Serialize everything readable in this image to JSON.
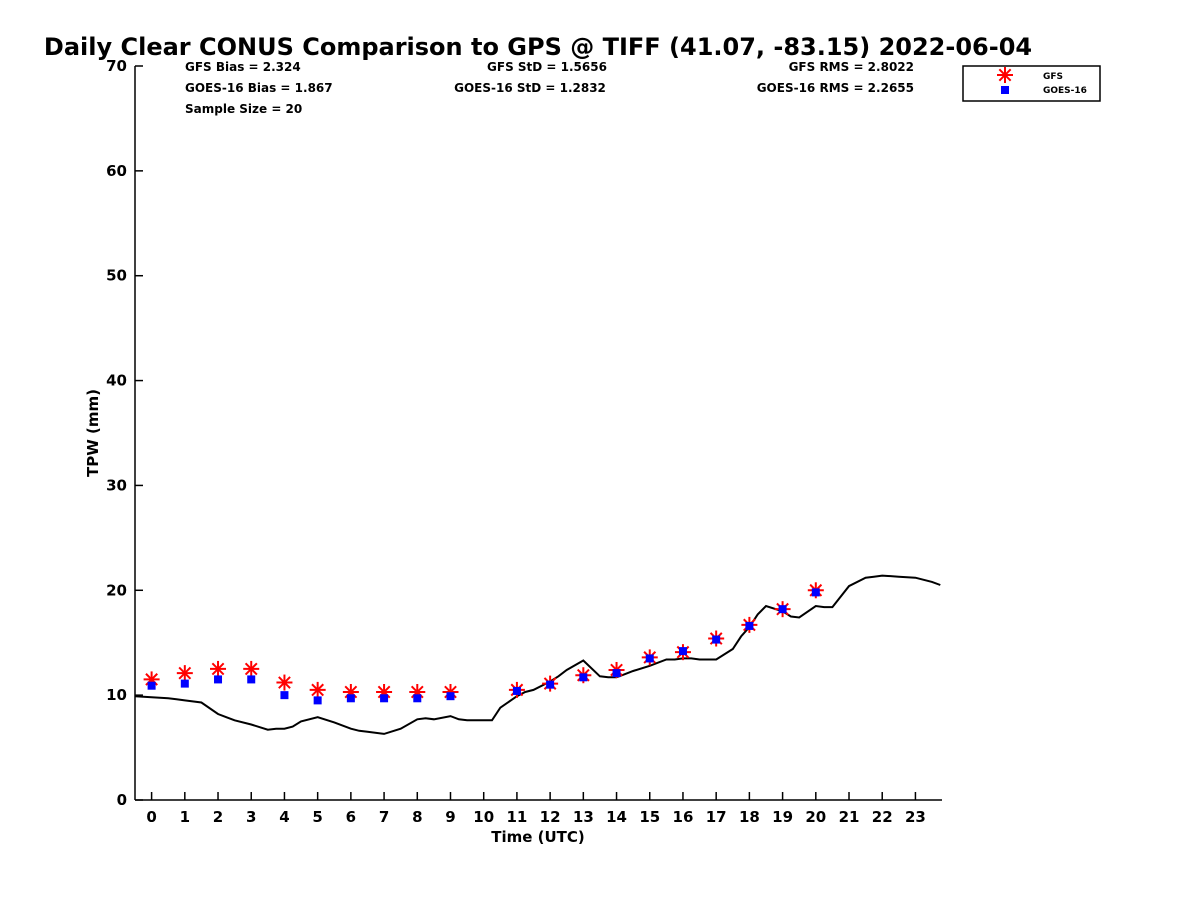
{
  "chart_data": {
    "type": "scatter",
    "title": "Daily Clear CONUS Comparison to GPS @ TIFF (41.07, -83.15) 2022-06-04",
    "xlabel": "Time (UTC)",
    "ylabel": "TPW (mm)",
    "xlim": [
      -0.5,
      23.8
    ],
    "ylim": [
      0,
      70
    ],
    "x_ticks": [
      0,
      1,
      2,
      3,
      4,
      5,
      6,
      7,
      8,
      9,
      10,
      11,
      12,
      13,
      14,
      15,
      16,
      17,
      18,
      19,
      20,
      21,
      22,
      23
    ],
    "y_ticks": [
      0,
      10,
      20,
      30,
      40,
      50,
      60,
      70
    ],
    "grid": false,
    "legend_position": "top-right, outside plot area",
    "stats": {
      "gfs_bias": "GFS Bias = 2.324",
      "goes_bias": "GOES-16 Bias = 1.867",
      "sample_size": "Sample Size = 20",
      "gfs_std": "GFS StD = 1.5656",
      "goes_std": "GOES-16 StD = 1.2832",
      "gfs_rms": "GFS RMS = 2.8022",
      "goes_rms": "GOES-16 RMS = 2.2655"
    },
    "series": [
      {
        "name": "GFS",
        "marker": "asterisk",
        "color": "#ff0000",
        "x": [
          0,
          1,
          2,
          3,
          4,
          5,
          6,
          7,
          8,
          9,
          11,
          12,
          13,
          14,
          15,
          16,
          17,
          18,
          19,
          20
        ],
        "y": [
          11.5,
          12.1,
          12.5,
          12.5,
          11.2,
          10.5,
          10.3,
          10.3,
          10.3,
          10.3,
          10.5,
          11.1,
          11.9,
          12.4,
          13.6,
          14.1,
          15.4,
          16.7,
          18.2,
          20.0
        ]
      },
      {
        "name": "GOES-16",
        "marker": "square",
        "color": "#0000ff",
        "x": [
          0,
          1,
          2,
          3,
          4,
          5,
          6,
          7,
          8,
          9,
          11,
          12,
          13,
          14,
          15,
          16,
          17,
          18,
          19,
          20
        ],
        "y": [
          10.9,
          11.1,
          11.5,
          11.5,
          10.0,
          9.5,
          9.7,
          9.7,
          9.7,
          9.9,
          10.4,
          11.0,
          11.7,
          12.1,
          13.5,
          14.2,
          15.3,
          16.6,
          18.2,
          19.8
        ]
      },
      {
        "name": "GPS",
        "line": true,
        "color": "#000000",
        "x": [
          -0.5,
          0,
          0.5,
          0.75,
          1,
          1.5,
          2,
          2.25,
          2.5,
          3,
          3.5,
          3.75,
          4,
          4.25,
          4.5,
          5,
          5.5,
          6,
          6.25,
          6.5,
          7,
          7.5,
          8,
          8.25,
          8.5,
          9,
          9.25,
          9.5,
          10,
          10.25,
          10.5,
          11,
          11.25,
          11.5,
          12,
          12.25,
          12.5,
          13,
          13.5,
          13.75,
          14,
          14.25,
          14.5,
          15,
          15.5,
          15.75,
          16,
          16.25,
          16.5,
          17,
          17.5,
          17.75,
          18,
          18.25,
          18.5,
          19,
          19.25,
          19.5,
          20,
          20.25,
          20.5,
          21,
          21.5,
          21.75,
          22,
          22.5,
          23,
          23.5,
          23.75
        ],
        "y": [
          9.9,
          9.8,
          9.7,
          9.6,
          9.5,
          9.3,
          8.2,
          7.9,
          7.6,
          7.2,
          6.7,
          6.8,
          6.8,
          7.0,
          7.5,
          7.9,
          7.4,
          6.8,
          6.6,
          6.5,
          6.3,
          6.8,
          7.7,
          7.8,
          7.7,
          8.0,
          7.7,
          7.6,
          7.6,
          7.6,
          8.8,
          9.9,
          10.3,
          10.5,
          11.3,
          11.8,
          12.4,
          13.3,
          11.8,
          11.7,
          11.7,
          12.0,
          12.3,
          12.8,
          13.4,
          13.4,
          13.5,
          13.5,
          13.4,
          13.4,
          14.4,
          15.6,
          16.5,
          17.7,
          18.5,
          18.0,
          17.5,
          17.4,
          18.5,
          18.4,
          18.4,
          20.4,
          21.2,
          21.3,
          21.4,
          21.3,
          21.2,
          20.8,
          20.5
        ]
      }
    ]
  }
}
